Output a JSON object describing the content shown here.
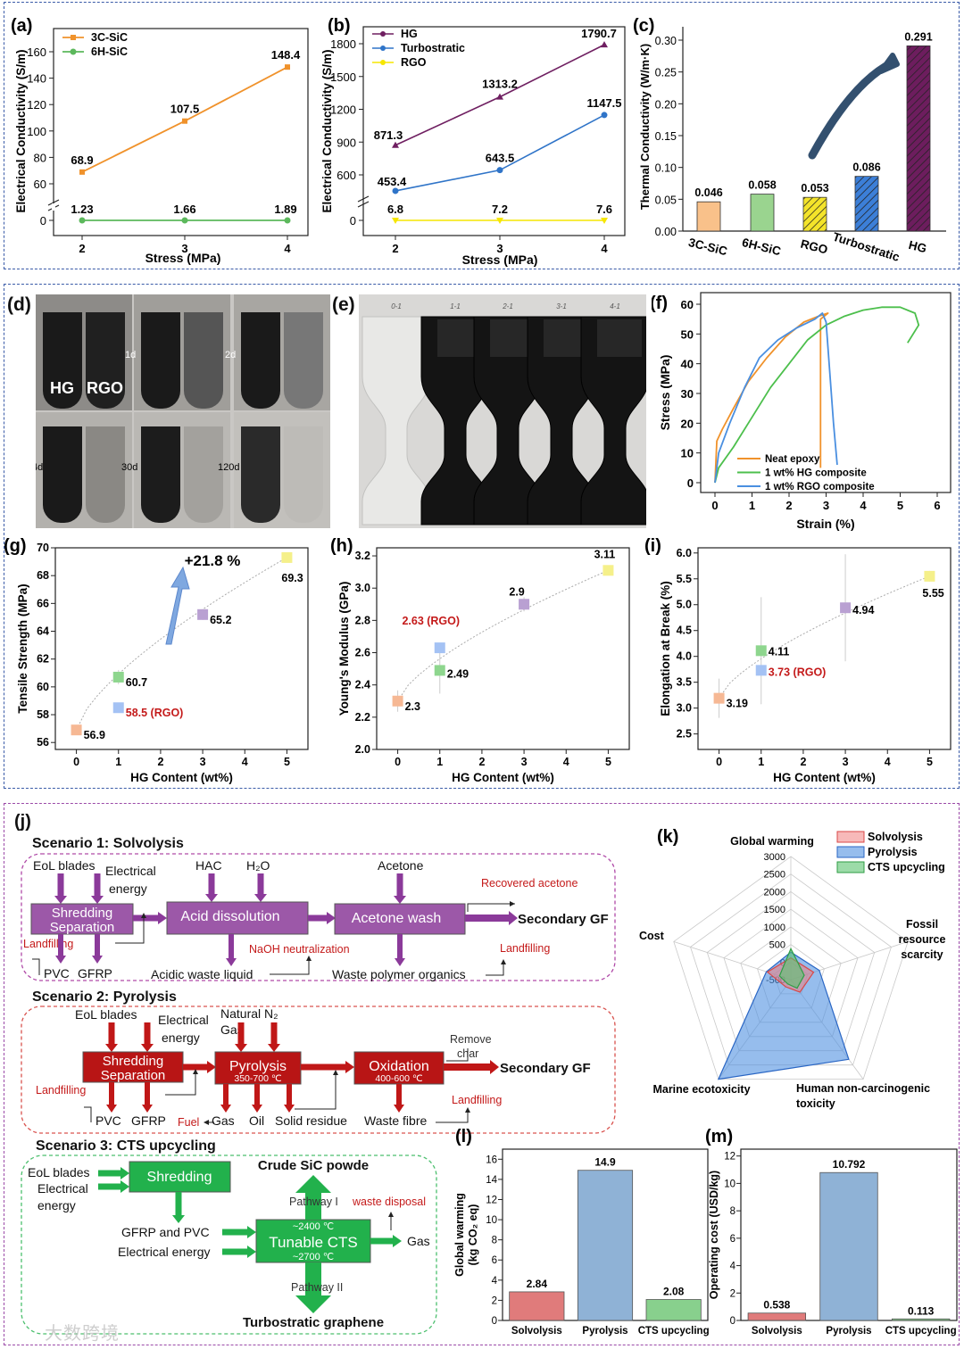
{
  "labels": {
    "a": "(a)",
    "b": "(b)",
    "c": "(c)",
    "d": "(d)",
    "e": "(e)",
    "f": "(f)",
    "g": "(g)",
    "h": "(h)",
    "i": "(i)",
    "j": "(j)",
    "k": "(k)",
    "l": "(l)",
    "m": "(m)"
  },
  "photo_d": {
    "hg": "HG",
    "rgo": "RGO",
    "t1": "1d",
    "t2": "2d",
    "t4": "4d",
    "t30": "30d",
    "t120": "120d"
  },
  "photo_e": {
    "labels": [
      "0-1",
      "1-1",
      "2-1",
      "3-1",
      "4-1"
    ]
  },
  "colors": {
    "orange": "#f0922b",
    "green": "#5cb85c",
    "purple": "#6f1f61",
    "blue": "#2f74c8",
    "yellow": "#f6e600",
    "red": "#c41a1a",
    "darkred": "#b31217",
    "violet": "#9254a6",
    "cts_green": "#22b14c",
    "nav": "#3a5ba8"
  },
  "chart_data": [
    {
      "id": "a",
      "type": "line",
      "xlabel": "Stress (MPa)",
      "ylabel": "Electrical Conductivity (S/m)",
      "x": [
        2,
        3,
        4
      ],
      "series": [
        {
          "name": "3C-SiC",
          "values": [
            68.9,
            107.5,
            148.4
          ],
          "labels": [
            "68.9",
            "107.5",
            "148.4"
          ]
        },
        {
          "name": "6H-SiC",
          "values": [
            1.23,
            1.66,
            1.89
          ],
          "labels": [
            "1.23",
            "1.66",
            "1.89"
          ]
        }
      ],
      "yticks": [
        "0",
        "60",
        "80",
        "100",
        "120",
        "140",
        "160"
      ],
      "xticks": [
        "2",
        "3",
        "4"
      ]
    },
    {
      "id": "b",
      "type": "line",
      "xlabel": "Stress (MPa)",
      "ylabel": "Electrical Conductivity (S/m)",
      "x": [
        2,
        3,
        4
      ],
      "series": [
        {
          "name": "HG",
          "values": [
            871.3,
            1313.2,
            1790.7
          ],
          "labels": [
            "871.3",
            "1313.2",
            "1790.7"
          ]
        },
        {
          "name": "Turbostratic",
          "values": [
            453.4,
            643.5,
            1147.5
          ],
          "labels": [
            "453.4",
            "643.5",
            "1147.5"
          ]
        },
        {
          "name": "RGO",
          "values": [
            6.8,
            7.2,
            7.6
          ],
          "labels": [
            "6.8",
            "7.2",
            "7.6"
          ]
        }
      ],
      "yticks": [
        "0",
        "600",
        "900",
        "1200",
        "1500",
        "1800"
      ],
      "xticks": [
        "2",
        "3",
        "4"
      ]
    },
    {
      "id": "c",
      "type": "bar",
      "ylabel": "Thermal Conductivity (W/m·K)",
      "categories": [
        "3C-SiC",
        "6H-SiC",
        "RGO",
        "Turbostratic",
        "HG"
      ],
      "values": [
        0.046,
        0.058,
        0.053,
        0.086,
        0.291
      ],
      "labels": [
        "0.046",
        "0.058",
        "0.053",
        "0.086",
        "0.291"
      ],
      "yticks": [
        "0.00",
        "0.05",
        "0.10",
        "0.15",
        "0.20",
        "0.25",
        "0.30"
      ],
      "ylim": [
        0,
        0.3
      ]
    },
    {
      "id": "f",
      "type": "line",
      "xlabel": "Strain (%)",
      "ylabel": "Stress (MPa)",
      "legend": [
        "Neat epoxy",
        "1 wt% HG composite",
        "1 wt% RGO composite"
      ],
      "xticks": [
        "0",
        "1",
        "2",
        "3",
        "4",
        "5",
        "6"
      ],
      "yticks": [
        "0",
        "10",
        "20",
        "30",
        "40",
        "50",
        "60"
      ],
      "series": [
        {
          "name": "Neat epoxy",
          "x": [
            0,
            0.05,
            0.2,
            0.5,
            0.9,
            1.4,
            1.9,
            2.4,
            2.8,
            3.05,
            2.85,
            2.85
          ],
          "y": [
            0,
            14,
            18,
            25,
            34,
            42,
            49,
            54,
            56,
            57,
            55,
            5
          ]
        },
        {
          "name": "1 wt% HG composite",
          "x": [
            0,
            0.1,
            0.5,
            1.0,
            1.5,
            2.0,
            2.5,
            3.0,
            3.5,
            4.0,
            4.5,
            5.0,
            5.4,
            5.5,
            5.2
          ],
          "y": [
            0,
            5,
            12,
            22,
            32,
            40,
            48,
            53,
            56,
            58,
            59,
            59,
            57,
            53,
            47
          ]
        },
        {
          "name": "1 wt% RGO composite",
          "x": [
            0,
            0.1,
            0.4,
            0.8,
            1.2,
            1.7,
            2.2,
            2.7,
            2.9,
            3.0,
            3.2,
            3.3
          ],
          "y": [
            0,
            10,
            20,
            32,
            42,
            48,
            52,
            55,
            57,
            54,
            20,
            6
          ]
        }
      ]
    },
    {
      "id": "g",
      "type": "scatter",
      "xlabel": "HG Content (wt%)",
      "ylabel": "Tensile Strength (MPa)",
      "points": [
        {
          "x": 0,
          "y": 56.9,
          "label": "56.9"
        },
        {
          "x": 1,
          "y": 60.7,
          "label": "60.7"
        },
        {
          "x": 3,
          "y": 65.2,
          "label": "65.2"
        },
        {
          "x": 5,
          "y": 69.3,
          "label": "69.3"
        }
      ],
      "rgo": {
        "x": 1,
        "y": 58.5,
        "label": "58.5 (RGO)"
      },
      "annotation": "+21.8 %",
      "xticks": [
        "0",
        "1",
        "2",
        "3",
        "4",
        "5"
      ],
      "yticks": [
        "56",
        "58",
        "60",
        "62",
        "64",
        "66",
        "68",
        "70"
      ],
      "ylim": [
        55.5,
        70
      ],
      "xlim": [
        -0.5,
        5.5
      ]
    },
    {
      "id": "h",
      "type": "scatter",
      "xlabel": "HG Content (wt%)",
      "ylabel": "Young's Modulus (GPa)",
      "points": [
        {
          "x": 0,
          "y": 2.3,
          "label": "2.3"
        },
        {
          "x": 1,
          "y": 2.49,
          "label": "2.49"
        },
        {
          "x": 3,
          "y": 2.9,
          "label": "2.9"
        },
        {
          "x": 5,
          "y": 3.11,
          "label": "3.11"
        }
      ],
      "rgo": {
        "x": 1,
        "y": 2.63,
        "label": "2.63 (RGO)"
      },
      "xticks": [
        "0",
        "1",
        "2",
        "3",
        "4",
        "5"
      ],
      "yticks": [
        "2.0",
        "2.2",
        "2.4",
        "2.6",
        "2.8",
        "3.0",
        "3.2"
      ],
      "ylim": [
        2.0,
        3.25
      ],
      "xlim": [
        -0.5,
        5.5
      ]
    },
    {
      "id": "i",
      "type": "scatter",
      "xlabel": "HG Content (wt%)",
      "ylabel": "Elongation at Break (%)",
      "points": [
        {
          "x": 0,
          "y": 3.19,
          "label": "3.19"
        },
        {
          "x": 1,
          "y": 4.11,
          "label": "4.11"
        },
        {
          "x": 3,
          "y": 4.94,
          "label": "4.94"
        },
        {
          "x": 5,
          "y": 5.55,
          "label": "5.55"
        }
      ],
      "rgo": {
        "x": 1,
        "y": 3.73,
        "label": "3.73 (RGO)"
      },
      "xticks": [
        "0",
        "1",
        "2",
        "3",
        "4",
        "5"
      ],
      "yticks": [
        "2.5",
        "3.0",
        "3.5",
        "4.0",
        "4.5",
        "5.0",
        "5.5",
        "6.0"
      ],
      "ylim": [
        2.2,
        6.1
      ],
      "xlim": [
        -0.5,
        5.5
      ]
    },
    {
      "id": "k",
      "type": "radar",
      "axes": [
        "Global warming",
        "Fossil resource scarcity",
        "Human non-carcinogenic toxicity",
        "Marine ecotoxicity",
        "Cost"
      ],
      "ticks": [
        "-500",
        "0",
        "500",
        "1000",
        "1500",
        "2000",
        "2500",
        "3000"
      ],
      "series": [
        {
          "name": "Solvolysis",
          "values": [
            120,
            180,
            -60,
            -250,
            200
          ]
        },
        {
          "name": "Pyrolysis",
          "values": [
            280,
            350,
            2300,
            3000,
            230
          ]
        },
        {
          "name": "CTS upcycling",
          "values": [
            380,
            -100,
            -200,
            -350,
            -160
          ]
        }
      ]
    },
    {
      "id": "l",
      "type": "bar",
      "ylabel": "Global warming (kg CO2 eq)",
      "categories": [
        "Solvolysis",
        "Pyrolysis",
        "CTS upcycling"
      ],
      "values": [
        2.84,
        14.9,
        2.08
      ],
      "labels": [
        "2.84",
        "14.9",
        "2.08"
      ],
      "yticks": [
        "0",
        "2",
        "4",
        "6",
        "8",
        "10",
        "12",
        "14",
        "16"
      ],
      "ylim": [
        0,
        17
      ]
    },
    {
      "id": "m",
      "type": "bar",
      "ylabel": "Operating cost (USD/kg)",
      "categories": [
        "Solvolysis",
        "Pyrolysis",
        "CTS upcycling"
      ],
      "values": [
        0.538,
        10.792,
        0.113
      ],
      "labels": [
        "0.538",
        "10.792",
        "0.113"
      ],
      "yticks": [
        "0",
        "2",
        "4",
        "6",
        "8",
        "10",
        "12"
      ],
      "ylim": [
        0,
        12.5
      ]
    }
  ],
  "flow": {
    "s1": {
      "title": "Scenario 1: Solvolysis",
      "in1": "EoL blades",
      "in2": "Electrical",
      "in2b": "energy",
      "box1": "Shredding",
      "box1b": "Separation",
      "hac": "HAC",
      "h2o": "H₂O",
      "box2": "Acid dissolution",
      "acetone": "Acetone",
      "box3": "Acetone wash",
      "out": "Secondary GF",
      "rec": "Recovered acetone",
      "land1": "Landfilling",
      "land2": "Landfilling",
      "pvc": "PVC",
      "gfrp": "GFRP",
      "naoh": "NaOH neutralization",
      "acid": "Acidic waste liquid",
      "waste": "Waste polymer organics"
    },
    "s2": {
      "title": "Scenario 2: Pyrolysis",
      "in1": "EoL blades",
      "in2": "Electrical",
      "in2b": "energy",
      "n2": "Natural N₂",
      "gas_in": "Gas",
      "box1": "Shredding",
      "box1b": "Separation",
      "box2": "Pyrolysis",
      "box2t": "350-700 ℃",
      "box3": "Oxidation",
      "box3t": "400-600 ℃",
      "remove": "Remove",
      "char": "char",
      "out": "Secondary GF",
      "land1": "Landfilling",
      "land2": "Landfilling",
      "pvc": "PVC",
      "gfrp": "GFRP",
      "fuel": "Fuel",
      "gas": "Gas",
      "oil": "Oil",
      "solid": "Solid residue",
      "fibre": "Waste fibre"
    },
    "s3": {
      "title": "Scenario 3:  CTS upcycling",
      "in1": "EoL blades",
      "in2": "Electrical",
      "in2b": "energy",
      "box1": "Shredding",
      "gfrp": "GFRP and PVC",
      "elec": "Electrical energy",
      "box2": "Tunable CTS",
      "t1": "~2400 ℃",
      "t2": "~2700 ℃",
      "crude": "Crude SiC powde",
      "pw1": "Pathway I",
      "pw2": "Pathway II",
      "disposal": "waste disposal",
      "gas": "Gas",
      "turbo": "Turbostratic graphene"
    }
  },
  "watermark": "大数跨境"
}
